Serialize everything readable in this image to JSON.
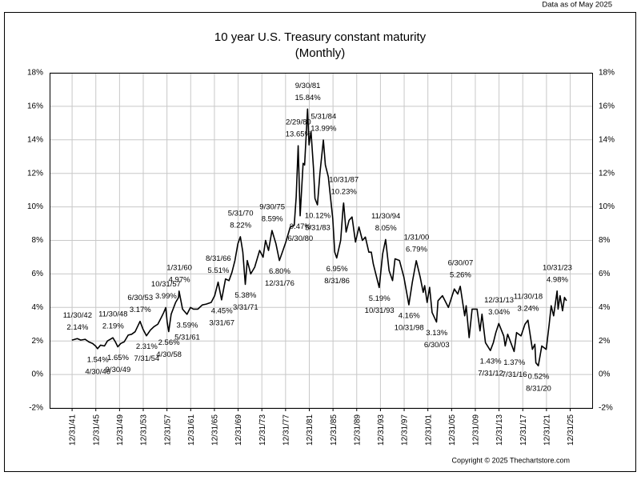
{
  "chart_data": {
    "type": "line",
    "title": "10 year U.S. Treasury constant maturity",
    "subtitle": "(Monthly)",
    "note": "Data as of May 2025",
    "credit": "Copyright © 2025 Thechartstore.com",
    "xlim": [
      "1938-03",
      "2029-09"
    ],
    "xticks": [
      "12/31/41",
      "12/31/45",
      "12/31/49",
      "12/31/53",
      "12/31/57",
      "12/31/61",
      "12/31/65",
      "12/31/69",
      "12/31/73",
      "12/31/77",
      "12/31/81",
      "12/31/85",
      "12/31/89",
      "12/31/93",
      "12/31/97",
      "12/31/01",
      "12/31/05",
      "12/31/09",
      "12/31/13",
      "12/31/17",
      "12/31/21",
      "12/31/25"
    ],
    "ylim": [
      -2,
      18
    ],
    "yticks": [
      {
        "value": -2,
        "label": "-2%"
      },
      {
        "value": 0,
        "label": "0%"
      },
      {
        "value": 2,
        "label": "2%"
      },
      {
        "value": 4,
        "label": "4%"
      },
      {
        "value": 6,
        "label": "6%"
      },
      {
        "value": 8,
        "label": "8%"
      },
      {
        "value": 10,
        "label": "10%"
      },
      {
        "value": 12,
        "label": "12%"
      },
      {
        "value": 14,
        "label": "14%"
      },
      {
        "value": 16,
        "label": "16%"
      },
      {
        "value": 18,
        "label": "18%"
      }
    ],
    "grid": true,
    "series": [
      {
        "color": "#000000",
        "x": [
          "1941-12",
          "1942-04",
          "1942-11",
          "1943-06",
          "1944-03",
          "1944-10",
          "1945-06",
          "1945-12",
          "1946-04",
          "1946-10",
          "1947-06",
          "1947-12",
          "1948-06",
          "1948-11",
          "1949-04",
          "1949-09",
          "1950-03",
          "1950-10",
          "1951-06",
          "1952-01",
          "1952-08",
          "1953-06",
          "1953-12",
          "1954-07",
          "1955-03",
          "1955-10",
          "1956-06",
          "1957-01",
          "1957-06",
          "1957-10",
          "1958-01",
          "1958-04",
          "1958-09",
          "1959-06",
          "1959-12",
          "1960-01",
          "1960-08",
          "1961-05",
          "1961-12",
          "1962-06",
          "1963-03",
          "1963-12",
          "1964-08",
          "1965-06",
          "1966-01",
          "1966-08",
          "1967-03",
          "1967-11",
          "1968-06",
          "1968-12",
          "1969-06",
          "1969-12",
          "1970-05",
          "1970-10",
          "1971-03",
          "1971-07",
          "1972-02",
          "1972-10",
          "1973-08",
          "1974-03",
          "1974-08",
          "1975-02",
          "1975-09",
          "1976-05",
          "1976-12",
          "1977-06",
          "1978-01",
          "1978-10",
          "1979-06",
          "1979-10",
          "1980-02",
          "1980-06",
          "1980-12",
          "1981-03",
          "1981-09",
          "1981-12",
          "1982-04",
          "1982-09",
          "1982-12",
          "1983-05",
          "1983-10",
          "1984-05",
          "1984-09",
          "1985-03",
          "1985-12",
          "1986-04",
          "1986-08",
          "1987-04",
          "1987-09",
          "1987-10",
          "1988-03",
          "1988-09",
          "1989-03",
          "1989-10",
          "1990-05",
          "1990-12",
          "1991-06",
          "1992-01",
          "1992-06",
          "1992-10",
          "1993-10",
          "1994-05",
          "1994-11",
          "1995-06",
          "1996-01",
          "1996-06",
          "1997-03",
          "1997-12",
          "1998-10",
          "1999-05",
          "2000-01",
          "2000-09",
          "2001-03",
          "2001-06",
          "2001-11",
          "2002-04",
          "2002-09",
          "2003-06",
          "2003-09",
          "2004-06",
          "2005-06",
          "2006-06",
          "2007-01",
          "2007-06",
          "2008-03",
          "2008-06",
          "2008-12",
          "2009-06",
          "2010-04",
          "2010-10",
          "2011-02",
          "2011-09",
          "2012-07",
          "2013-01",
          "2013-06",
          "2013-12",
          "2014-10",
          "2015-01",
          "2015-06",
          "2016-07",
          "2016-12",
          "2017-09",
          "2018-05",
          "2018-11",
          "2019-08",
          "2020-01",
          "2020-03",
          "2020-08",
          "2021-03",
          "2021-12",
          "2022-06",
          "2022-10",
          "2023-03",
          "2023-10",
          "2023-12",
          "2024-04",
          "2024-09",
          "2025-01",
          "2025-05"
        ],
        "values": [
          2.05,
          2.08,
          2.14,
          2.05,
          2.1,
          1.95,
          1.85,
          1.7,
          1.54,
          1.75,
          1.7,
          2.0,
          2.1,
          2.19,
          1.95,
          1.65,
          1.85,
          1.95,
          2.35,
          2.4,
          2.55,
          3.17,
          2.7,
          2.31,
          2.65,
          2.85,
          3.0,
          3.4,
          3.7,
          3.99,
          3.1,
          2.56,
          3.6,
          4.3,
          4.6,
          4.97,
          3.9,
          3.59,
          4.0,
          3.9,
          3.9,
          4.15,
          4.2,
          4.3,
          4.7,
          5.51,
          4.45,
          5.7,
          5.6,
          6.1,
          6.8,
          7.8,
          8.22,
          7.3,
          5.38,
          6.8,
          6.0,
          6.4,
          7.4,
          7.0,
          8.0,
          7.4,
          8.59,
          7.8,
          6.8,
          7.3,
          7.9,
          8.8,
          8.9,
          10.6,
          13.65,
          9.47,
          12.6,
          12.5,
          15.84,
          13.7,
          14.5,
          12.3,
          10.5,
          10.12,
          12.0,
          13.99,
          12.5,
          11.8,
          9.3,
          7.3,
          6.95,
          8.0,
          10.0,
          10.23,
          8.5,
          9.2,
          9.4,
          7.9,
          8.8,
          8.0,
          8.2,
          7.3,
          7.3,
          6.6,
          5.19,
          7.2,
          8.05,
          6.2,
          5.6,
          6.9,
          6.8,
          5.8,
          4.16,
          5.5,
          6.79,
          5.8,
          4.9,
          5.3,
          4.3,
          5.2,
          3.7,
          3.13,
          4.4,
          4.7,
          4.0,
          5.1,
          4.8,
          5.26,
          3.5,
          4.1,
          2.2,
          3.9,
          3.9,
          2.6,
          3.6,
          1.9,
          1.43,
          1.9,
          2.5,
          3.04,
          2.3,
          1.7,
          2.4,
          1.37,
          2.5,
          2.3,
          3.0,
          3.24,
          1.5,
          1.8,
          0.7,
          0.52,
          1.7,
          1.5,
          3.0,
          4.1,
          3.5,
          4.98,
          3.9,
          4.7,
          3.8,
          4.6,
          4.4
        ]
      }
    ],
    "annotations": [
      {
        "date": "11/30/42",
        "value": 2.14,
        "value_label": "2.14%"
      },
      {
        "date": "4/30/46",
        "value": 1.54,
        "value_label": "1.54%"
      },
      {
        "date": "11/30/48",
        "value": 2.19,
        "value_label": "2.19%"
      },
      {
        "date": "9/30/49",
        "value": 1.65,
        "value_label": "1.65%"
      },
      {
        "date": "6/30/53",
        "value": 3.17,
        "value_label": "3.17%"
      },
      {
        "date": "7/31/54",
        "value": 2.31,
        "value_label": "2.31%"
      },
      {
        "date": "10/31/57",
        "value": 3.99,
        "value_label": "3.99%"
      },
      {
        "date": "4/30/58",
        "value": 2.56,
        "value_label": "2.56%"
      },
      {
        "date": "1/31/60",
        "value": 4.97,
        "value_label": "4.97%"
      },
      {
        "date": "5/31/61",
        "value": 3.59,
        "value_label": "3.59%"
      },
      {
        "date": "8/31/66",
        "value": 5.51,
        "value_label": "5.51%"
      },
      {
        "date": "3/31/67",
        "value": 4.45,
        "value_label": "4.45%"
      },
      {
        "date": "5/31/70",
        "value": 8.22,
        "value_label": "8.22%"
      },
      {
        "date": "3/31/71",
        "value": 5.38,
        "value_label": "5.38%"
      },
      {
        "date": "9/30/75",
        "value": 8.59,
        "value_label": "8.59%"
      },
      {
        "date": "12/31/76",
        "value": 6.8,
        "value_label": "6.80%"
      },
      {
        "date": "2/29/80",
        "value": 13.65,
        "value_label": "13.65%"
      },
      {
        "date": "6/30/80",
        "value": 9.47,
        "value_label": "9.47%"
      },
      {
        "date": "9/30/81",
        "value": 15.84,
        "value_label": "15.84%"
      },
      {
        "date": "5/31/83",
        "value": 10.12,
        "value_label": "10.12%"
      },
      {
        "date": "5/31/84",
        "value": 13.99,
        "value_label": "13.99%"
      },
      {
        "date": "8/31/86",
        "value": 6.95,
        "value_label": "6.95%"
      },
      {
        "date": "10/31/87",
        "value": 10.23,
        "value_label": "10.23%"
      },
      {
        "date": "10/31/93",
        "value": 5.19,
        "value_label": "5.19%"
      },
      {
        "date": "11/30/94",
        "value": 8.05,
        "value_label": "8.05%"
      },
      {
        "date": "10/31/98",
        "value": 4.16,
        "value_label": "4.16%"
      },
      {
        "date": "1/31/00",
        "value": 6.79,
        "value_label": "6.79%"
      },
      {
        "date": "6/30/03",
        "value": 3.13,
        "value_label": "3.13%"
      },
      {
        "date": "6/30/07",
        "value": 5.26,
        "value_label": "5.26%"
      },
      {
        "date": "7/31/12",
        "value": 1.43,
        "value_label": "1.43%"
      },
      {
        "date": "12/31/13",
        "value": 3.04,
        "value_label": "3.04%"
      },
      {
        "date": "7/31/16",
        "value": 1.37,
        "value_label": "1.37%"
      },
      {
        "date": "11/30/18",
        "value": 3.24,
        "value_label": "3.24%"
      },
      {
        "date": "8/31/20",
        "value": 0.52,
        "value_label": "0.52%"
      },
      {
        "date": "10/31/23",
        "value": 4.98,
        "value_label": "4.98%"
      }
    ]
  }
}
